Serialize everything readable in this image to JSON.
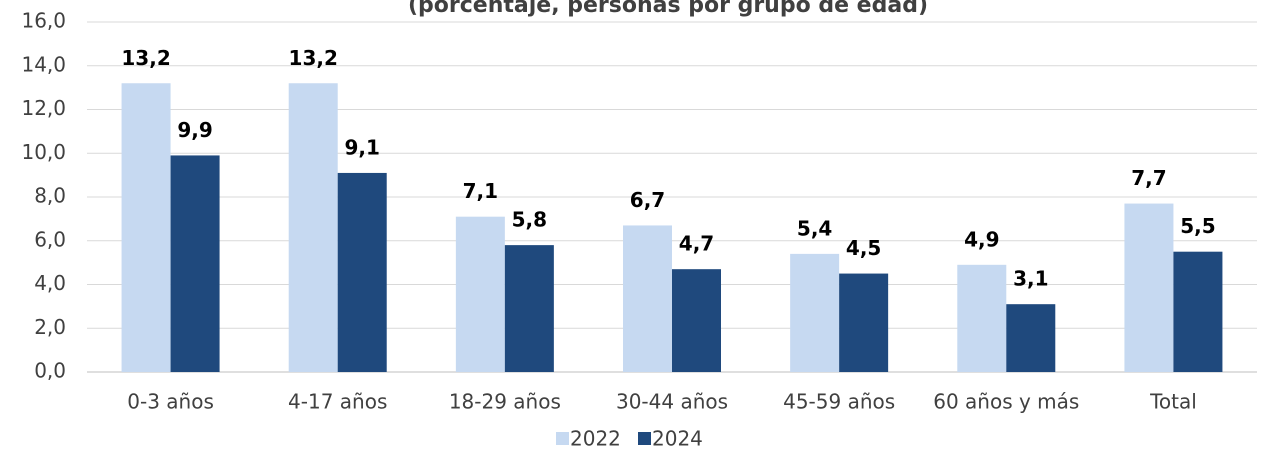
{
  "chart_data": {
    "type": "bar",
    "title": "(porcentaje, personas por grupo de edad)",
    "categories": [
      "0-3 años",
      "4-17 años",
      "18-29 años",
      "30-44 años",
      "45-59 años",
      "60 años y más",
      "Total"
    ],
    "series": [
      {
        "name": "2022",
        "color": "#c6d9f1",
        "values": [
          13.2,
          13.2,
          7.1,
          6.7,
          5.4,
          4.9,
          7.7
        ],
        "value_labels": [
          "13,2",
          "13,2",
          "7,1",
          "6,7",
          "5,4",
          "4,9",
          "7,7"
        ]
      },
      {
        "name": "2024",
        "color": "#1f497d",
        "values": [
          9.9,
          9.1,
          5.8,
          4.7,
          4.5,
          3.1,
          5.5
        ],
        "value_labels": [
          "9,9",
          "9,1",
          "5,8",
          "4,7",
          "4,5",
          "3,1",
          "5,5"
        ]
      }
    ],
    "ylim": [
      0,
      16
    ],
    "yticks": [
      {
        "value": 0,
        "label": "0,0"
      },
      {
        "value": 2,
        "label": "2,0"
      },
      {
        "value": 4,
        "label": "4,0"
      },
      {
        "value": 6,
        "label": "6,0"
      },
      {
        "value": 8,
        "label": "8,0"
      },
      {
        "value": 10,
        "label": "10,0"
      },
      {
        "value": 12,
        "label": "12,0"
      },
      {
        "value": 14,
        "label": "14,0"
      },
      {
        "value": 16,
        "label": "16,0"
      }
    ],
    "grid": true,
    "legend": "bottom"
  }
}
